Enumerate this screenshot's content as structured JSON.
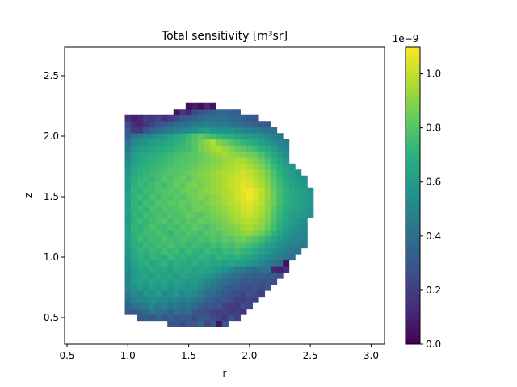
{
  "chart_data": {
    "type": "heatmap",
    "title": "Total sensitivity [m³sr]",
    "xlabel": "r",
    "ylabel": "z",
    "xlim": [
      0.48,
      3.11
    ],
    "ylim": [
      0.28,
      2.74
    ],
    "x_ticks": [
      {
        "value": 0.5,
        "label": "0.5"
      },
      {
        "value": 1.0,
        "label": "1.0"
      },
      {
        "value": 1.5,
        "label": "1.5"
      },
      {
        "value": 2.0,
        "label": "2.0"
      },
      {
        "value": 2.5,
        "label": "2.5"
      },
      {
        "value": 3.0,
        "label": "3.0"
      }
    ],
    "y_ticks": [
      {
        "value": 0.5,
        "label": "0.5"
      },
      {
        "value": 1.0,
        "label": "1.0"
      },
      {
        "value": 1.5,
        "label": "1.5"
      },
      {
        "value": 2.0,
        "label": "2.0"
      },
      {
        "value": 2.5,
        "label": "2.5"
      }
    ],
    "grid": false,
    "colormap": "viridis",
    "cell_size": 0.05,
    "x_start": 0.975,
    "z_start": 0.375,
    "rows_from_bottom": [
      [
        0,
        0,
        0,
        0,
        0,
        0,
        0,
        0,
        0,
        0,
        0,
        0,
        0,
        0,
        0,
        0,
        0,
        0,
        0,
        0,
        0,
        0,
        0,
        0,
        0,
        0,
        0,
        0,
        0,
        0,
        0,
        0,
        0
      ],
      [
        0,
        0,
        0,
        0,
        0,
        0,
        0,
        0.27,
        0.3,
        0.25,
        0.3,
        0.3,
        0.35,
        0.22,
        0.3,
        0.05,
        0.28,
        0,
        0,
        0,
        0,
        0,
        0,
        0,
        0,
        0,
        0,
        0,
        0,
        0,
        0,
        0,
        0
      ],
      [
        0,
        0,
        0.3,
        0.32,
        0.28,
        0.35,
        0.3,
        0.33,
        0.28,
        0.32,
        0.3,
        0.26,
        0.3,
        0.3,
        0.25,
        0.22,
        0.18,
        0.28,
        0.2,
        0,
        0,
        0,
        0,
        0,
        0,
        0,
        0,
        0,
        0,
        0,
        0,
        0,
        0
      ],
      [
        0.3,
        0.3,
        0.35,
        0.38,
        0.45,
        0.4,
        0.38,
        0.35,
        0.42,
        0.36,
        0.4,
        0.3,
        0.28,
        0.25,
        0.22,
        0.2,
        0.22,
        0.18,
        0.2,
        0.15,
        0,
        0,
        0,
        0,
        0,
        0,
        0,
        0,
        0,
        0,
        0,
        0,
        0
      ],
      [
        0.35,
        0.4,
        0.42,
        0.45,
        0.5,
        0.45,
        0.48,
        0.42,
        0.45,
        0.4,
        0.42,
        0.38,
        0.33,
        0.3,
        0.28,
        0.3,
        0.22,
        0.2,
        0.18,
        0.25,
        0.22,
        0,
        0,
        0,
        0,
        0,
        0,
        0,
        0,
        0,
        0,
        0,
        0
      ],
      [
        0.4,
        0.48,
        0.52,
        0.5,
        0.55,
        0.5,
        0.52,
        0.48,
        0.5,
        0.46,
        0.48,
        0.44,
        0.42,
        0.35,
        0.32,
        0.28,
        0.3,
        0.25,
        0.22,
        0.2,
        0.24,
        0.2,
        0,
        0,
        0,
        0,
        0,
        0,
        0,
        0,
        0,
        0,
        0
      ],
      [
        0.45,
        0.52,
        0.5,
        0.58,
        0.55,
        0.6,
        0.52,
        0.55,
        0.58,
        0.5,
        0.55,
        0.5,
        0.46,
        0.4,
        0.38,
        0.34,
        0.3,
        0.28,
        0.25,
        0.22,
        0.28,
        0.25,
        0.2,
        0,
        0,
        0,
        0,
        0,
        0,
        0,
        0,
        0,
        0
      ],
      [
        0.5,
        0.55,
        0.6,
        0.56,
        0.62,
        0.58,
        0.6,
        0.55,
        0.6,
        0.58,
        0.55,
        0.56,
        0.52,
        0.46,
        0.42,
        0.38,
        0.35,
        0.3,
        0.32,
        0.28,
        0.25,
        0.28,
        0.24,
        0.3,
        0,
        0,
        0,
        0,
        0,
        0,
        0,
        0,
        0
      ],
      [
        0.5,
        0.6,
        0.62,
        0.6,
        0.64,
        0.62,
        0.65,
        0.6,
        0.62,
        0.6,
        0.58,
        0.6,
        0.56,
        0.5,
        0.48,
        0.42,
        0.4,
        0.36,
        0.35,
        0.3,
        0.32,
        0.3,
        0.28,
        0.3,
        0.25,
        0,
        0,
        0,
        0,
        0,
        0,
        0,
        0
      ],
      [
        0.48,
        0.58,
        0.62,
        0.65,
        0.6,
        0.66,
        0.62,
        0.64,
        0.6,
        0.66,
        0.62,
        0.6,
        0.62,
        0.58,
        0.55,
        0.5,
        0.45,
        0.4,
        0.38,
        0.36,
        0.34,
        0.32,
        0.35,
        0.3,
        0.32,
        0.28,
        0,
        0,
        0,
        0,
        0,
        0,
        0
      ],
      [
        0.5,
        0.6,
        0.65,
        0.62,
        0.68,
        0.64,
        0.66,
        0.62,
        0.68,
        0.64,
        0.66,
        0.62,
        0.64,
        0.62,
        0.6,
        0.58,
        0.55,
        0.5,
        0.46,
        0.44,
        0.4,
        0.38,
        0.4,
        0.42,
        0.12,
        0.1,
        0.15,
        0,
        0,
        0,
        0,
        0,
        0
      ],
      [
        0.55,
        0.62,
        0.66,
        0.7,
        0.64,
        0.68,
        0.72,
        0.66,
        0.7,
        0.68,
        0.66,
        0.7,
        0.66,
        0.68,
        0.64,
        0.66,
        0.62,
        0.64,
        0.6,
        0.62,
        0.58,
        0.55,
        0.5,
        0.45,
        0.42,
        0.38,
        0.04,
        0,
        0,
        0,
        0,
        0,
        0
      ],
      [
        0.55,
        0.65,
        0.7,
        0.66,
        0.72,
        0.7,
        0.68,
        0.74,
        0.7,
        0.72,
        0.7,
        0.68,
        0.72,
        0.7,
        0.68,
        0.72,
        0.7,
        0.68,
        0.7,
        0.66,
        0.64,
        0.6,
        0.56,
        0.52,
        0.5,
        0.46,
        0.42,
        0.4,
        0,
        0,
        0,
        0,
        0
      ],
      [
        0.58,
        0.66,
        0.72,
        0.7,
        0.74,
        0.72,
        0.76,
        0.72,
        0.74,
        0.7,
        0.74,
        0.72,
        0.7,
        0.74,
        0.72,
        0.7,
        0.74,
        0.72,
        0.76,
        0.72,
        0.7,
        0.66,
        0.62,
        0.58,
        0.54,
        0.5,
        0.46,
        0.44,
        0.42,
        0,
        0,
        0,
        0
      ],
      [
        0.6,
        0.68,
        0.7,
        0.74,
        0.72,
        0.76,
        0.74,
        0.78,
        0.74,
        0.76,
        0.72,
        0.76,
        0.74,
        0.72,
        0.76,
        0.74,
        0.78,
        0.76,
        0.8,
        0.78,
        0.76,
        0.72,
        0.68,
        0.62,
        0.58,
        0.54,
        0.5,
        0.48,
        0.46,
        0.44,
        0,
        0,
        0
      ],
      [
        0.6,
        0.7,
        0.74,
        0.72,
        0.76,
        0.74,
        0.78,
        0.76,
        0.74,
        0.78,
        0.76,
        0.74,
        0.78,
        0.76,
        0.8,
        0.78,
        0.82,
        0.8,
        0.84,
        0.86,
        0.82,
        0.8,
        0.76,
        0.7,
        0.64,
        0.58,
        0.55,
        0.52,
        0.5,
        0.48,
        0,
        0,
        0
      ],
      [
        0.62,
        0.7,
        0.72,
        0.76,
        0.74,
        0.78,
        0.76,
        0.72,
        0.78,
        0.76,
        0.8,
        0.78,
        0.76,
        0.8,
        0.82,
        0.8,
        0.84,
        0.86,
        0.88,
        0.9,
        0.92,
        0.88,
        0.84,
        0.78,
        0.7,
        0.64,
        0.58,
        0.55,
        0.52,
        0.5,
        0,
        0,
        0
      ],
      [
        0.62,
        0.72,
        0.7,
        0.74,
        0.78,
        0.76,
        0.74,
        0.78,
        0.76,
        0.8,
        0.78,
        0.82,
        0.8,
        0.78,
        0.82,
        0.84,
        0.86,
        0.88,
        0.9,
        0.94,
        0.96,
        0.92,
        0.9,
        0.84,
        0.76,
        0.68,
        0.62,
        0.58,
        0.55,
        0.52,
        0,
        0,
        0
      ],
      [
        0.6,
        0.7,
        0.74,
        0.72,
        0.76,
        0.78,
        0.8,
        0.76,
        0.8,
        0.78,
        0.82,
        0.8,
        0.84,
        0.82,
        0.84,
        0.86,
        0.88,
        0.92,
        0.94,
        0.96,
        0.98,
        0.96,
        0.92,
        0.86,
        0.78,
        0.7,
        0.64,
        0.6,
        0.56,
        0.54,
        0,
        0,
        0
      ],
      [
        0.6,
        0.72,
        0.7,
        0.76,
        0.74,
        0.78,
        0.76,
        0.8,
        0.78,
        0.8,
        0.84,
        0.82,
        0.8,
        0.84,
        0.86,
        0.88,
        0.9,
        0.94,
        0.96,
        1.0,
        1.02,
        0.98,
        0.94,
        0.88,
        0.8,
        0.72,
        0.66,
        0.62,
        0.6,
        0.58,
        0.55,
        0,
        0
      ],
      [
        0.62,
        0.7,
        0.74,
        0.72,
        0.78,
        0.76,
        0.8,
        0.78,
        0.8,
        0.82,
        0.8,
        0.84,
        0.86,
        0.84,
        0.88,
        0.9,
        0.92,
        0.96,
        0.98,
        1.02,
        1.04,
        1.0,
        0.96,
        0.9,
        0.82,
        0.74,
        0.68,
        0.64,
        0.62,
        0.6,
        0.56,
        0,
        0
      ],
      [
        0.6,
        0.72,
        0.7,
        0.76,
        0.74,
        0.8,
        0.78,
        0.82,
        0.8,
        0.84,
        0.82,
        0.86,
        0.84,
        0.88,
        0.9,
        0.92,
        0.94,
        0.98,
        1.0,
        1.04,
        1.06,
        1.02,
        0.98,
        0.9,
        0.84,
        0.76,
        0.7,
        0.66,
        0.64,
        0.62,
        0.58,
        0,
        0
      ],
      [
        0.62,
        0.7,
        0.74,
        0.72,
        0.78,
        0.76,
        0.8,
        0.78,
        0.82,
        0.8,
        0.84,
        0.86,
        0.88,
        0.86,
        0.9,
        0.92,
        0.96,
        0.98,
        1.02,
        1.04,
        1.08,
        1.04,
        0.98,
        0.92,
        0.84,
        0.76,
        0.7,
        0.66,
        0.64,
        0.62,
        0.58,
        0,
        0
      ],
      [
        0.6,
        0.72,
        0.7,
        0.76,
        0.74,
        0.78,
        0.8,
        0.82,
        0.8,
        0.84,
        0.86,
        0.84,
        0.88,
        0.9,
        0.92,
        0.94,
        0.96,
        1.0,
        1.02,
        1.06,
        1.08,
        1.04,
        1.0,
        0.92,
        0.84,
        0.76,
        0.7,
        0.66,
        0.62,
        0.6,
        0.56,
        0,
        0
      ],
      [
        0.6,
        0.7,
        0.74,
        0.72,
        0.76,
        0.78,
        0.76,
        0.8,
        0.84,
        0.82,
        0.86,
        0.88,
        0.86,
        0.9,
        0.92,
        0.94,
        0.98,
        1.0,
        1.02,
        1.06,
        1.04,
        1.0,
        0.96,
        0.9,
        0.82,
        0.74,
        0.68,
        0.64,
        0.6,
        0.58,
        0,
        0,
        0
      ],
      [
        0.6,
        0.68,
        0.72,
        0.74,
        0.72,
        0.76,
        0.8,
        0.78,
        0.82,
        0.84,
        0.82,
        0.86,
        0.88,
        0.9,
        0.92,
        0.94,
        0.96,
        1.0,
        1.02,
        1.04,
        1.02,
        0.98,
        0.94,
        0.88,
        0.8,
        0.72,
        0.66,
        0.62,
        0.58,
        0.55,
        0,
        0,
        0
      ],
      [
        0.58,
        0.66,
        0.7,
        0.72,
        0.74,
        0.76,
        0.78,
        0.8,
        0.8,
        0.82,
        0.84,
        0.86,
        0.88,
        0.9,
        0.92,
        0.94,
        0.96,
        0.98,
        1.0,
        1.02,
        1.0,
        0.96,
        0.92,
        0.86,
        0.78,
        0.7,
        0.64,
        0.6,
        0.56,
        0,
        0,
        0,
        0
      ],
      [
        0.55,
        0.64,
        0.68,
        0.7,
        0.72,
        0.74,
        0.76,
        0.78,
        0.8,
        0.8,
        0.82,
        0.84,
        0.86,
        0.88,
        0.9,
        0.92,
        0.94,
        0.96,
        0.98,
        1.0,
        0.96,
        0.92,
        0.88,
        0.82,
        0.74,
        0.68,
        0.62,
        0.58,
        0,
        0,
        0,
        0,
        0
      ],
      [
        0.52,
        0.62,
        0.66,
        0.68,
        0.7,
        0.72,
        0.74,
        0.76,
        0.78,
        0.8,
        0.8,
        0.82,
        0.84,
        0.86,
        0.88,
        0.9,
        0.92,
        0.94,
        0.96,
        0.96,
        0.92,
        0.88,
        0.84,
        0.78,
        0.7,
        0.64,
        0.58,
        0,
        0,
        0,
        0,
        0,
        0
      ],
      [
        0.5,
        0.6,
        0.64,
        0.66,
        0.68,
        0.7,
        0.72,
        0.74,
        0.76,
        0.78,
        0.8,
        0.82,
        0.84,
        0.88,
        0.9,
        0.92,
        0.94,
        0.92,
        0.9,
        0.88,
        0.86,
        0.84,
        0.78,
        0.72,
        0.66,
        0.6,
        0.54,
        0,
        0,
        0,
        0,
        0,
        0
      ],
      [
        0.45,
        0.56,
        0.6,
        0.62,
        0.64,
        0.66,
        0.68,
        0.7,
        0.72,
        0.74,
        0.76,
        0.8,
        0.86,
        0.9,
        0.94,
        0.96,
        0.92,
        0.88,
        0.84,
        0.82,
        0.78,
        0.74,
        0.7,
        0.66,
        0.6,
        0.54,
        0.5,
        0,
        0,
        0,
        0,
        0,
        0
      ],
      [
        0.4,
        0.5,
        0.54,
        0.56,
        0.6,
        0.62,
        0.64,
        0.66,
        0.7,
        0.72,
        0.76,
        0.8,
        0.86,
        0.92,
        0.96,
        0.88,
        0.84,
        0.8,
        0.76,
        0.72,
        0.7,
        0.66,
        0.62,
        0.58,
        0.54,
        0.5,
        0.46,
        0,
        0,
        0,
        0,
        0,
        0
      ],
      [
        0.35,
        0.42,
        0.46,
        0.5,
        0.52,
        0.56,
        0.58,
        0.62,
        0.66,
        0.7,
        0.74,
        0.78,
        0.82,
        0.78,
        0.76,
        0.72,
        0.7,
        0.68,
        0.64,
        0.62,
        0.6,
        0.58,
        0.55,
        0.52,
        0.48,
        0.44,
        0,
        0,
        0,
        0,
        0,
        0,
        0
      ],
      [
        0.3,
        0.2,
        0.18,
        0.28,
        0.35,
        0.4,
        0.42,
        0.45,
        0.48,
        0.5,
        0.52,
        0.55,
        0.58,
        0.6,
        0.58,
        0.56,
        0.55,
        0.54,
        0.52,
        0.5,
        0.48,
        0.46,
        0.44,
        0.42,
        0.4,
        0,
        0,
        0,
        0,
        0,
        0,
        0,
        0
      ],
      [
        0.25,
        0.15,
        0.12,
        0.18,
        0.22,
        0.28,
        0.32,
        0.35,
        0.38,
        0.4,
        0.42,
        0.45,
        0.46,
        0.48,
        0.46,
        0.45,
        0.44,
        0.42,
        0.4,
        0.38,
        0.36,
        0.34,
        0.32,
        0.3,
        0,
        0,
        0,
        0,
        0,
        0,
        0,
        0,
        0
      ],
      [
        0.15,
        0.1,
        0.12,
        0.2,
        0.18,
        0.22,
        0.15,
        0.2,
        0.25,
        0.3,
        0.32,
        0.35,
        0.38,
        0.4,
        0.4,
        0.42,
        0.4,
        0.38,
        0.36,
        0.34,
        0.32,
        0.3,
        0,
        0,
        0,
        0,
        0,
        0,
        0,
        0,
        0,
        0,
        0
      ],
      [
        0,
        0,
        0,
        0,
        0,
        0,
        0,
        0,
        0.05,
        0.18,
        0.12,
        0.25,
        0.3,
        0.32,
        0.35,
        0.38,
        0.36,
        0.35,
        0.34,
        0,
        0,
        0,
        0,
        0,
        0,
        0,
        0,
        0,
        0,
        0,
        0,
        0,
        0
      ],
      [
        0,
        0,
        0,
        0,
        0,
        0,
        0,
        0,
        0,
        0,
        0.04,
        0.08,
        0.03,
        0.12,
        0.05,
        0,
        0,
        0,
        0,
        0,
        0,
        0,
        0,
        0,
        0,
        0,
        0,
        0,
        0,
        0,
        0,
        0,
        0
      ]
    ],
    "colorbar": {
      "min": 0.0,
      "max": 1.1,
      "exponent_label": "1e−9",
      "ticks": [
        {
          "value": 0.0,
          "label": "0.0"
        },
        {
          "value": 0.2,
          "label": "0.2"
        },
        {
          "value": 0.4,
          "label": "0.4"
        },
        {
          "value": 0.6,
          "label": "0.6"
        },
        {
          "value": 0.8,
          "label": "0.8"
        },
        {
          "value": 1.0,
          "label": "1.0"
        }
      ]
    }
  }
}
